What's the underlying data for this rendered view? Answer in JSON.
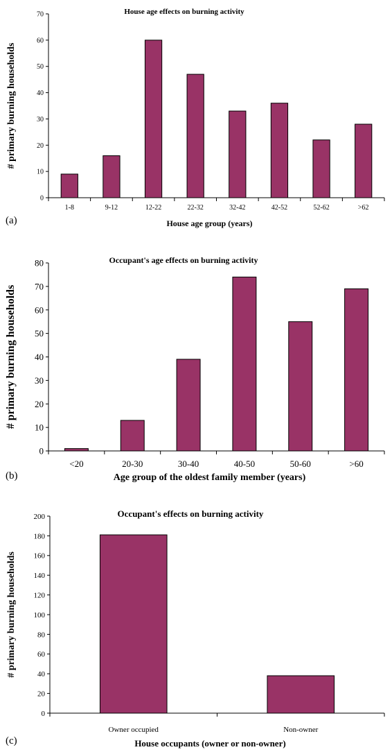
{
  "charts": [
    {
      "panel": "(a)",
      "chart_data": {
        "type": "bar",
        "title": "House age effects on burning activity",
        "xlabel": "House age group (years)",
        "ylabel": "# primary burning households",
        "categories": [
          "1-8",
          "9-12",
          "12-22",
          "22-32",
          "32-42",
          "42-52",
          "52-62",
          ">62"
        ],
        "values": [
          9,
          16,
          60,
          47,
          33,
          36,
          22,
          28
        ],
        "ylim": [
          0,
          70
        ],
        "yticks": [
          0,
          10,
          20,
          30,
          40,
          50,
          60,
          70
        ],
        "bar_color": "#993366",
        "grid": false
      }
    },
    {
      "panel": "(b)",
      "chart_data": {
        "type": "bar",
        "title": "Occupant's age effects on burning activity",
        "xlabel": "Age group of the oldest family member (years)",
        "ylabel": "# primary burning households",
        "categories": [
          "<20",
          "20-30",
          "30-40",
          "40-50",
          "50-60",
          ">60"
        ],
        "values": [
          1,
          13,
          39,
          74,
          55,
          69
        ],
        "ylim": [
          0,
          80
        ],
        "yticks": [
          0,
          10,
          20,
          30,
          40,
          50,
          60,
          70,
          80
        ],
        "bar_color": "#993366",
        "grid": false
      }
    },
    {
      "panel": "(c)",
      "chart_data": {
        "type": "bar",
        "title": "Occupant's effects on burning activity",
        "xlabel": "House occupants (owner or non-owner)",
        "ylabel": "# primary burning households",
        "categories": [
          "Owner occupied",
          "Non-owner"
        ],
        "values": [
          181,
          38
        ],
        "ylim": [
          0,
          200
        ],
        "yticks": [
          0,
          20,
          40,
          60,
          80,
          100,
          120,
          140,
          160,
          180,
          200
        ],
        "bar_color": "#993366",
        "grid": false
      }
    }
  ]
}
